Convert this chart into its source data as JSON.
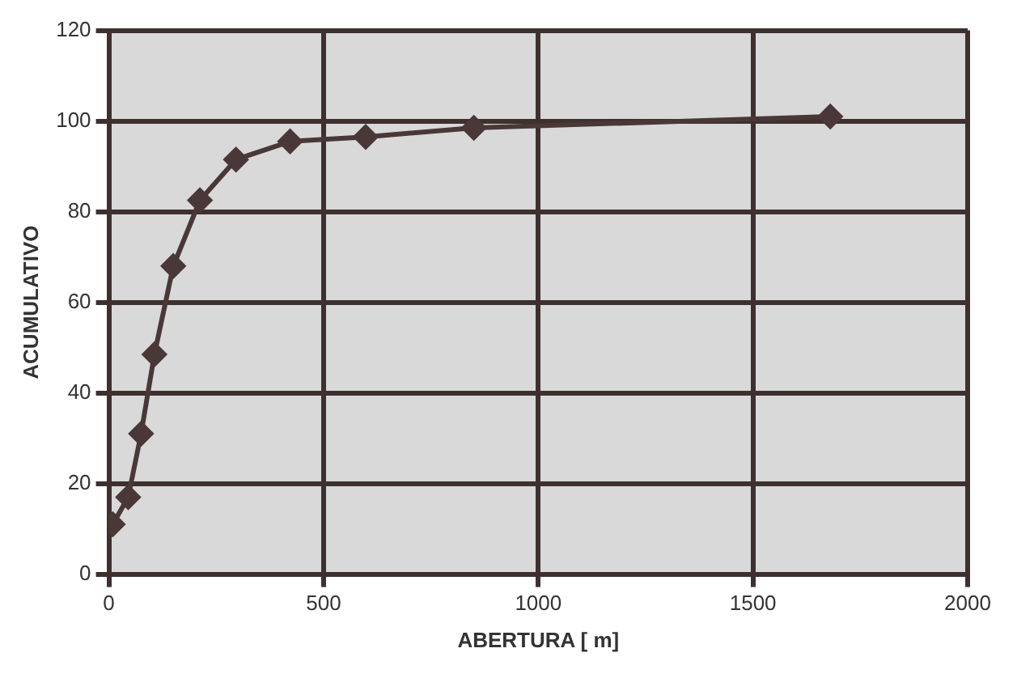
{
  "chart_data": {
    "type": "line",
    "xlabel": "ABERTURA [ m]",
    "ylabel": "ACUMULATIVO",
    "x": [
      9,
      45,
      75,
      106,
      150,
      212,
      296,
      422,
      598,
      850,
      1680
    ],
    "series": [
      {
        "color": "#4a3838",
        "values": [
          11,
          17,
          31,
          48.5,
          68,
          82.5,
          91.5,
          95.5,
          96.5,
          98.5,
          101
        ]
      }
    ],
    "xlim": [
      0,
      2000
    ],
    "xticks": [
      0,
      500,
      1000,
      1500,
      2000
    ],
    "ylim": [
      0,
      120
    ],
    "yticks": [
      0,
      20,
      40,
      60,
      80,
      100,
      120
    ],
    "grid": true,
    "marker": "diamond",
    "line_style": "solid",
    "legend": false
  }
}
